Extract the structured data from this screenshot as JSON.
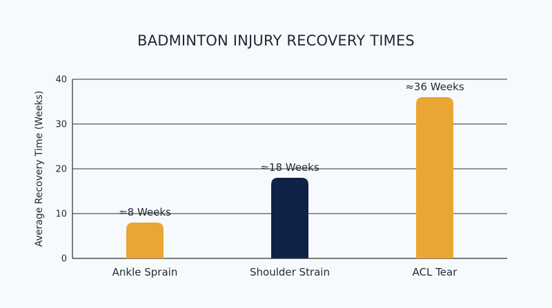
{
  "chart_data": {
    "type": "bar",
    "title": "BADMINTON INJURY RECOVERY TIMES",
    "xlabel": "",
    "ylabel": "Average Recovery Time (Weeks)",
    "ylim": [
      0,
      40
    ],
    "yticks": [
      0,
      10,
      20,
      30,
      40
    ],
    "grid": true,
    "categories": [
      "Ankle Sprain",
      "Shoulder Strain",
      "ACL Tear"
    ],
    "values": [
      8,
      18,
      36
    ],
    "data_labels": [
      "≈8 Weeks",
      "≈18 Weeks",
      "≈36 Weeks"
    ],
    "colors": [
      "#e9a633",
      "#0f2347",
      "#e9a633"
    ]
  }
}
